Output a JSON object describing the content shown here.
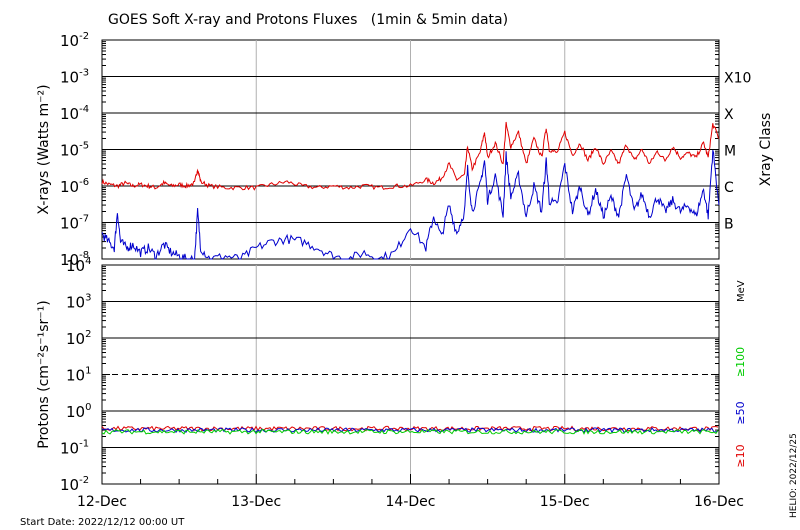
{
  "title": "GOES Soft X-ray and Protons Fluxes   (1min & 5min data)",
  "footer": {
    "start_date": "Start Date: 2022/12/12 00:00 UT",
    "credit": "HELIO: 2022/12/25"
  },
  "colors": {
    "xray_long": "#e00000",
    "xray_short": "#0000cc",
    "proton_10": "#e00000",
    "proton_50": "#0000cc",
    "proton_100": "#00cc00",
    "grid": "#000000",
    "day_lines": "#b0b0b0"
  },
  "chart_data": [
    {
      "type": "line",
      "panel": "xray",
      "ylabel": "X-rays (Watts m⁻²)",
      "y_scale": "log",
      "ylim": [
        1e-08,
        0.01
      ],
      "y_ticks": [
        {
          "value": 1e-08,
          "base": "10",
          "exp": "-8"
        },
        {
          "value": 1e-07,
          "base": "10",
          "exp": "-7"
        },
        {
          "value": 1e-06,
          "base": "10",
          "exp": "-6"
        },
        {
          "value": 1e-05,
          "base": "10",
          "exp": "-5"
        },
        {
          "value": 0.0001,
          "base": "10",
          "exp": "-4"
        },
        {
          "value": 0.001,
          "base": "10",
          "exp": "-3"
        },
        {
          "value": 0.01,
          "base": "10",
          "exp": "-2"
        }
      ],
      "right_label": "Xray Class",
      "class_labels": [
        {
          "value": 0.001,
          "label": "X10"
        },
        {
          "value": 0.0001,
          "label": "X"
        },
        {
          "value": 1e-05,
          "label": "M"
        },
        {
          "value": 1e-06,
          "label": "C"
        },
        {
          "value": 1e-07,
          "label": "B"
        }
      ],
      "grid_lines": [
        1e-07,
        1e-06,
        1e-05,
        0.0001,
        0.001
      ],
      "xlim": [
        "2022-12-12",
        "2022-12-16"
      ],
      "series": [
        {
          "color_key": "xray_long",
          "x_day": [
            0,
            0.05,
            0.1,
            0.15,
            0.2,
            0.25,
            0.3,
            0.35,
            0.4,
            0.45,
            0.5,
            0.55,
            0.6,
            0.62,
            0.64,
            0.7,
            0.8,
            0.9,
            1.0,
            1.1,
            1.2,
            1.3,
            1.4,
            1.5,
            1.6,
            1.7,
            1.8,
            1.9,
            2.0,
            2.1,
            2.15,
            2.2,
            2.25,
            2.3,
            2.35,
            2.37,
            2.4,
            2.45,
            2.48,
            2.5,
            2.55,
            2.6,
            2.62,
            2.65,
            2.7,
            2.75,
            2.8,
            2.85,
            2.88,
            2.9,
            2.95,
            3.0,
            3.05,
            3.1,
            3.15,
            3.2,
            3.25,
            3.3,
            3.35,
            3.4,
            3.45,
            3.5,
            3.55,
            3.6,
            3.65,
            3.7,
            3.75,
            3.8,
            3.85,
            3.9,
            3.93,
            3.96,
            4.0
          ],
          "y": [
            1.3e-06,
            1.1e-06,
            1e-06,
            1.2e-06,
            1e-06,
            1.1e-06,
            1e-06,
            9e-07,
            1.2e-06,
            1e-06,
            1.1e-06,
            1e-06,
            1.2e-06,
            3e-06,
            1.3e-06,
            1e-06,
            9e-07,
            9e-07,
            9e-07,
            1.1e-06,
            1.3e-06,
            1e-06,
            9e-07,
            1e-06,
            9e-07,
            1e-06,
            9e-07,
            1e-06,
            1e-06,
            1.5e-06,
            1.2e-06,
            1.6e-06,
            4e-06,
            1.5e-06,
            2e-06,
            1.2e-05,
            3e-06,
            8e-06,
            3e-05,
            6e-06,
            1.5e-05,
            4e-06,
            5e-05,
            1.2e-05,
            3e-05,
            4e-06,
            2e-05,
            6e-06,
            4e-05,
            1e-05,
            8e-06,
            3e-05,
            7e-06,
            1.5e-05,
            5e-06,
            1.2e-05,
            4e-06,
            9e-06,
            4e-06,
            1.4e-05,
            5e-06,
            1e-05,
            4e-06,
            9e-06,
            5e-06,
            1.2e-05,
            6e-06,
            8e-06,
            6e-06,
            1.5e-05,
            6e-06,
            5e-05,
            2e-05
          ]
        },
        {
          "color_key": "xray_short",
          "x_day": [
            0,
            0.04,
            0.08,
            0.1,
            0.12,
            0.16,
            0.2,
            0.25,
            0.3,
            0.35,
            0.4,
            0.45,
            0.5,
            0.55,
            0.6,
            0.62,
            0.64,
            0.7,
            0.8,
            0.9,
            1.0,
            1.1,
            1.2,
            1.3,
            1.4,
            1.5,
            1.6,
            1.7,
            1.8,
            1.9,
            2.0,
            2.1,
            2.15,
            2.2,
            2.25,
            2.3,
            2.35,
            2.37,
            2.4,
            2.45,
            2.48,
            2.5,
            2.55,
            2.6,
            2.62,
            2.65,
            2.7,
            2.75,
            2.8,
            2.85,
            2.88,
            2.9,
            2.95,
            3.0,
            3.05,
            3.1,
            3.15,
            3.2,
            3.25,
            3.3,
            3.35,
            3.4,
            3.45,
            3.5,
            3.55,
            3.6,
            3.65,
            3.7,
            3.75,
            3.8,
            3.85,
            3.9,
            3.93,
            3.96,
            4.0
          ],
          "y": [
            5e-08,
            3e-08,
            2e-08,
            2e-07,
            3e-08,
            2e-08,
            2.5e-08,
            1.5e-08,
            2e-08,
            1.2e-08,
            2.5e-08,
            1.5e-08,
            1.2e-08,
            1e-08,
            1e-08,
            2e-07,
            2e-08,
            1e-08,
            1.2e-08,
            1e-08,
            2e-08,
            3e-08,
            3.5e-08,
            3e-08,
            2e-08,
            1.2e-08,
            1e-08,
            1.5e-08,
            1e-08,
            1.5e-08,
            8e-08,
            2e-08,
            1.5e-07,
            4e-08,
            3e-07,
            5e-08,
            2e-07,
            3e-06,
            2e-07,
            1e-06,
            5e-06,
            4e-07,
            2e-06,
            1.5e-07,
            7e-06,
            5e-07,
            2e-06,
            1.5e-07,
            1e-06,
            2e-07,
            5e-06,
            4e-07,
            3e-07,
            4e-06,
            2e-07,
            1e-06,
            1.5e-07,
            8e-07,
            1.5e-07,
            5e-07,
            1.5e-07,
            2e-06,
            2e-07,
            6e-07,
            1.5e-07,
            5e-07,
            2e-07,
            4e-07,
            2e-07,
            3e-07,
            1.5e-07,
            8e-07,
            1.5e-07,
            1e-05,
            3e-07
          ]
        }
      ]
    },
    {
      "type": "line",
      "panel": "protons",
      "ylabel": "Protons (cm⁻²s⁻¹sr⁻¹)",
      "y_scale": "log",
      "ylim": [
        0.01,
        10000
      ],
      "y_ticks": [
        {
          "value": 0.01,
          "base": "10",
          "exp": "-2"
        },
        {
          "value": 0.1,
          "base": "10",
          "exp": "-1"
        },
        {
          "value": 1,
          "base": "10",
          "exp": "0"
        },
        {
          "value": 10,
          "base": "10",
          "exp": "1"
        },
        {
          "value": 100,
          "base": "10",
          "exp": "2"
        },
        {
          "value": 1000,
          "base": "10",
          "exp": "3"
        },
        {
          "value": 10000,
          "base": "10",
          "exp": "4"
        }
      ],
      "grid_lines": [
        0.1,
        1,
        100,
        1000
      ],
      "threshold_line": 10,
      "unit_label": "MeV",
      "legend": [
        {
          "label": "≥100",
          "color_key": "proton_100"
        },
        {
          "label": "≥50",
          "color_key": "proton_50"
        },
        {
          "label": "≥10",
          "color_key": "proton_10"
        }
      ],
      "series": [
        {
          "name": "≥10",
          "color_key": "proton_10",
          "level": 0.33
        },
        {
          "name": "≥50",
          "color_key": "proton_50",
          "level": 0.3
        },
        {
          "name": "≥100",
          "color_key": "proton_100",
          "level": 0.27
        }
      ],
      "x_ticks": [
        "12-Dec",
        "13-Dec",
        "14-Dec",
        "15-Dec",
        "16-Dec"
      ]
    }
  ]
}
